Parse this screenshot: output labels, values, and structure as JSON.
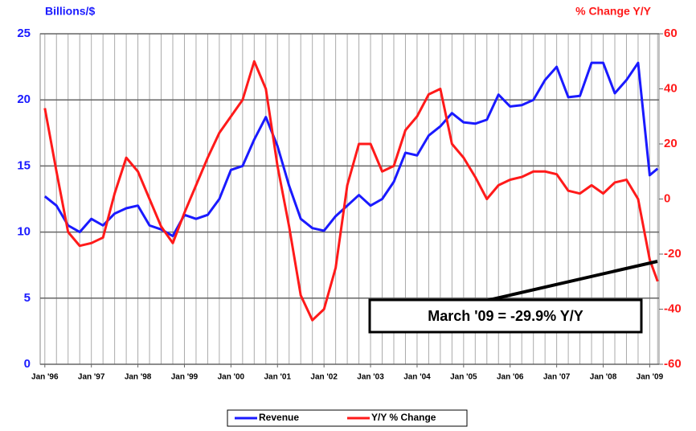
{
  "chart_data": {
    "type": "line",
    "y_axis_label": "Billions/$",
    "y2_axis_label": "% Change Y/Y",
    "annotation": "March '09 = -29.9% Y/Y",
    "x": [
      1996.0,
      1996.25,
      1996.5,
      1996.75,
      1997.0,
      1997.25,
      1997.5,
      1997.75,
      1998.0,
      1998.25,
      1998.5,
      1998.75,
      1999.0,
      1999.25,
      1999.5,
      1999.75,
      2000.0,
      2000.25,
      2000.5,
      2000.75,
      2001.0,
      2001.25,
      2001.5,
      2001.75,
      2002.0,
      2002.25,
      2002.5,
      2002.75,
      2003.0,
      2003.25,
      2003.5,
      2003.75,
      2004.0,
      2004.25,
      2004.5,
      2004.75,
      2005.0,
      2005.25,
      2005.5,
      2005.75,
      2006.0,
      2006.25,
      2006.5,
      2006.75,
      2007.0,
      2007.25,
      2007.5,
      2007.75,
      2008.0,
      2008.25,
      2008.5,
      2008.75,
      2009.0,
      2009.17
    ],
    "series": [
      {
        "name": "Revenue",
        "color": "#1a1aff",
        "axis": "y",
        "values": [
          12.7,
          12.0,
          10.5,
          10.0,
          11.0,
          10.5,
          11.4,
          11.8,
          12.0,
          10.5,
          10.2,
          9.7,
          11.3,
          11.0,
          11.3,
          12.5,
          14.7,
          15.0,
          17.0,
          18.7,
          16.5,
          13.5,
          11.0,
          10.3,
          10.1,
          11.2,
          12.0,
          12.8,
          12.0,
          12.5,
          13.8,
          16.0,
          15.8,
          17.3,
          18.0,
          19.0,
          18.3,
          18.2,
          18.5,
          20.4,
          19.5,
          19.6,
          20.0,
          21.5,
          22.5,
          20.2,
          20.3,
          22.8,
          22.8,
          20.5,
          21.5,
          22.8,
          14.3,
          14.8
        ]
      },
      {
        "name": "Y/Y % Change",
        "color": "#ff1a1a",
        "axis": "y2",
        "values": [
          33,
          10,
          -12,
          -17,
          -16,
          -14,
          2,
          15,
          10,
          0,
          -10,
          -16,
          -5,
          5,
          15,
          24,
          30,
          36,
          50,
          40,
          12,
          -10,
          -35,
          -44,
          -40,
          -25,
          5,
          20,
          20,
          10,
          12,
          25,
          30,
          38,
          40,
          20,
          15,
          8,
          0,
          5,
          7,
          8,
          10,
          10,
          9,
          3,
          2,
          5,
          2,
          6,
          7,
          0,
          -22,
          -29.9
        ]
      }
    ],
    "xlim": [
      1995.9,
      2009.2
    ],
    "xticks": [
      {
        "value": 1996,
        "label": "Jan '96"
      },
      {
        "value": 1997,
        "label": "Jan '97"
      },
      {
        "value": 1998,
        "label": "Jan '98"
      },
      {
        "value": 1999,
        "label": "Jan '99"
      },
      {
        "value": 2000,
        "label": "Jan '00"
      },
      {
        "value": 2001,
        "label": "Jan '01"
      },
      {
        "value": 2002,
        "label": "Jan '02"
      },
      {
        "value": 2003,
        "label": "Jan '03"
      },
      {
        "value": 2004,
        "label": "Jan '04"
      },
      {
        "value": 2005,
        "label": "Jan '05"
      },
      {
        "value": 2006,
        "label": "Jan '06"
      },
      {
        "value": 2007,
        "label": "Jan '07"
      },
      {
        "value": 2008,
        "label": "Jan '08"
      },
      {
        "value": 2009,
        "label": "Jan '09"
      }
    ],
    "ylim": [
      0,
      25
    ],
    "yticks": [
      0,
      5,
      10,
      15,
      20,
      25
    ],
    "y2lim": [
      -60,
      60
    ],
    "y2ticks": [
      -60,
      -40,
      -20,
      0,
      20,
      40,
      60
    ],
    "grid": true
  }
}
